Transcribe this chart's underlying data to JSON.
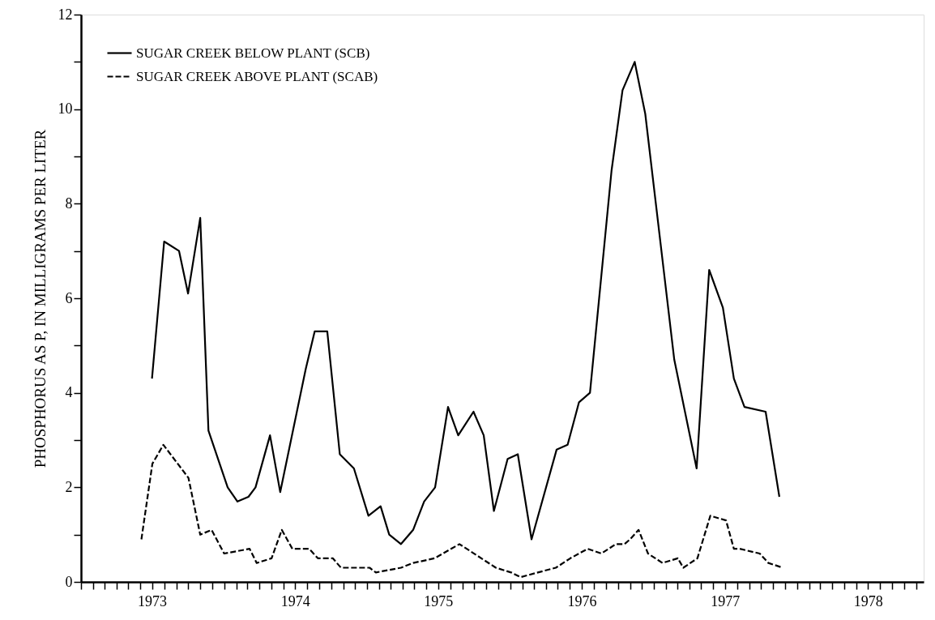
{
  "chart_data": {
    "type": "line",
    "ylabel": "PHOSPHORUS AS P, IN MILLIGRAMS PER LITER",
    "xlim": [
      "1973-01-01",
      "1978-11-20"
    ],
    "ylim": [
      0,
      12
    ],
    "yticks": [
      0,
      {
        "value": 1,
        "label": null
      },
      2,
      {
        "value": 3,
        "label": null
      },
      4,
      {
        "value": 5,
        "label": null
      },
      6,
      {
        "value": 7,
        "label": null
      },
      8,
      {
        "value": 9,
        "label": null
      },
      10,
      {
        "value": 11,
        "label": null
      },
      12
    ],
    "xticks": [
      {
        "value": "1973-01-01",
        "label": null
      },
      {
        "value": "1973-02-01",
        "label": null
      },
      {
        "value": "1973-03-01",
        "label": null
      },
      {
        "value": "1973-04-01",
        "label": null
      },
      {
        "value": "1973-05-01",
        "label": null
      },
      {
        "value": "1973-06-01",
        "label": null
      },
      {
        "value": "1973-07-01",
        "label": "1973"
      },
      {
        "value": "1973-08-01",
        "label": null
      },
      {
        "value": "1973-09-01",
        "label": null
      },
      {
        "value": "1973-10-01",
        "label": null
      },
      {
        "value": "1973-11-01",
        "label": null
      },
      {
        "value": "1973-12-01",
        "label": null
      },
      {
        "value": "1974-01-01",
        "label": null
      },
      {
        "value": "1974-02-01",
        "label": null
      },
      {
        "value": "1974-03-01",
        "label": null
      },
      {
        "value": "1974-04-01",
        "label": null
      },
      {
        "value": "1974-05-01",
        "label": null
      },
      {
        "value": "1974-06-01",
        "label": null
      },
      {
        "value": "1974-07-01",
        "label": "1974"
      },
      {
        "value": "1974-08-01",
        "label": null
      },
      {
        "value": "1974-09-01",
        "label": null
      },
      {
        "value": "1974-10-01",
        "label": null
      },
      {
        "value": "1974-11-01",
        "label": null
      },
      {
        "value": "1974-12-01",
        "label": null
      },
      {
        "value": "1975-01-01",
        "label": null
      },
      {
        "value": "1975-02-01",
        "label": null
      },
      {
        "value": "1975-03-01",
        "label": null
      },
      {
        "value": "1975-04-01",
        "label": null
      },
      {
        "value": "1975-05-01",
        "label": null
      },
      {
        "value": "1975-06-01",
        "label": null
      },
      {
        "value": "1975-07-01",
        "label": "1975"
      },
      {
        "value": "1975-08-01",
        "label": null
      },
      {
        "value": "1975-09-01",
        "label": null
      },
      {
        "value": "1975-10-01",
        "label": null
      },
      {
        "value": "1975-11-01",
        "label": null
      },
      {
        "value": "1975-12-01",
        "label": null
      },
      {
        "value": "1976-01-01",
        "label": null
      },
      {
        "value": "1976-02-01",
        "label": null
      },
      {
        "value": "1976-03-01",
        "label": null
      },
      {
        "value": "1976-04-01",
        "label": null
      },
      {
        "value": "1976-05-01",
        "label": null
      },
      {
        "value": "1976-06-01",
        "label": null
      },
      {
        "value": "1976-07-01",
        "label": "1976"
      },
      {
        "value": "1976-08-01",
        "label": null
      },
      {
        "value": "1976-09-01",
        "label": null
      },
      {
        "value": "1976-10-01",
        "label": null
      },
      {
        "value": "1976-11-01",
        "label": null
      },
      {
        "value": "1976-12-01",
        "label": null
      },
      {
        "value": "1977-01-01",
        "label": null
      },
      {
        "value": "1977-02-01",
        "label": null
      },
      {
        "value": "1977-03-01",
        "label": null
      },
      {
        "value": "1977-04-01",
        "label": null
      },
      {
        "value": "1977-05-01",
        "label": null
      },
      {
        "value": "1977-06-01",
        "label": null
      },
      {
        "value": "1977-07-01",
        "label": "1977"
      },
      {
        "value": "1977-08-01",
        "label": null
      },
      {
        "value": "1977-09-01",
        "label": null
      },
      {
        "value": "1977-10-01",
        "label": null
      },
      {
        "value": "1977-11-01",
        "label": null
      },
      {
        "value": "1977-12-01",
        "label": null
      },
      {
        "value": "1978-01-01",
        "label": null
      },
      {
        "value": "1978-02-01",
        "label": null
      },
      {
        "value": "1978-03-01",
        "label": null
      },
      {
        "value": "1978-04-01",
        "label": null
      },
      {
        "value": "1978-05-01",
        "label": null
      },
      {
        "value": "1978-06-01",
        "label": null
      },
      {
        "value": "1978-07-01",
        "label": "1978"
      },
      {
        "value": "1978-08-01",
        "label": null
      },
      {
        "value": "1978-09-01",
        "label": null
      },
      {
        "value": "1978-10-01",
        "label": null
      },
      {
        "value": "1978-11-01",
        "label": null
      }
    ],
    "grid": false,
    "legend": "top left",
    "marker": "none",
    "series": [
      {
        "name": "SUGAR CREEK BELOW PLANT (SCB)",
        "color": "#000000",
        "line_style": "solid",
        "x": [
          "1973-07-01",
          "1973-08-01",
          "1973-09-08",
          "1973-10-01",
          "1973-11-01",
          "1973-11-22",
          "1974-01-10",
          "1974-02-04",
          "1974-03-04",
          "1974-03-22",
          "1974-04-28",
          "1974-05-24",
          "1974-07-28",
          "1974-08-20",
          "1974-09-21",
          "1974-10-23",
          "1974-11-28",
          "1975-01-04",
          "1975-02-04",
          "1975-02-26",
          "1975-03-28",
          "1975-04-28",
          "1975-05-26",
          "1975-06-23",
          "1975-07-26",
          "1975-08-21",
          "1975-09-29",
          "1975-10-25",
          "1975-11-20",
          "1975-12-25",
          "1976-01-20",
          "1976-02-24",
          "1976-04-28",
          "1976-05-26",
          "1976-06-24",
          "1976-07-22",
          "1976-09-15",
          "1976-10-13",
          "1976-11-13",
          "1976-12-10",
          "1977-02-22",
          "1977-04-20",
          "1977-05-22",
          "1977-06-26",
          "1977-07-24",
          "1977-08-20",
          "1977-10-13",
          "1977-11-17"
        ],
        "values": [
          4.3,
          7.2,
          7.0,
          6.1,
          7.7,
          3.2,
          2.0,
          1.7,
          1.8,
          2.0,
          3.1,
          1.9,
          4.5,
          5.3,
          5.3,
          2.7,
          2.4,
          1.4,
          1.6,
          1.0,
          0.8,
          1.1,
          1.7,
          2.0,
          3.7,
          3.1,
          3.6,
          3.1,
          1.5,
          2.6,
          2.7,
          0.9,
          2.8,
          2.9,
          3.8,
          4.0,
          8.7,
          10.4,
          11.0,
          9.9,
          4.7,
          2.4,
          6.6,
          5.8,
          4.3,
          3.7,
          3.6,
          1.8
        ]
      },
      {
        "name": "SUGAR CREEK ABOVE PLANT (SCAB)",
        "color": "#000000",
        "line_style": "dashed",
        "x": [
          "1973-06-04",
          "1973-07-02",
          "1973-07-30",
          "1973-10-02",
          "1973-11-01",
          "1973-11-30",
          "1974-01-01",
          "1974-03-07",
          "1974-03-25",
          "1974-05-02",
          "1974-05-28",
          "1974-06-24",
          "1974-08-06",
          "1974-08-28",
          "1974-10-05",
          "1974-10-26",
          "1975-01-07",
          "1975-01-23",
          "1975-03-28",
          "1975-04-28",
          "1975-06-22",
          "1975-08-24",
          "1975-11-25",
          "1976-01-03",
          "1976-01-27",
          "1976-03-11",
          "1976-04-26",
          "1976-06-02",
          "1976-07-16",
          "1976-08-20",
          "1976-09-26",
          "1976-10-18",
          "1976-11-01",
          "1976-11-23",
          "1976-12-17",
          "1977-01-23",
          "1977-03-03",
          "1977-03-17",
          "1977-04-22",
          "1977-05-25",
          "1977-07-04",
          "1977-07-24",
          "1977-08-08",
          "1977-09-28",
          "1977-10-20",
          "1977-11-26"
        ],
        "values": [
          0.9,
          2.5,
          2.9,
          2.2,
          1.0,
          1.1,
          0.6,
          0.7,
          0.4,
          0.5,
          1.1,
          0.7,
          0.7,
          0.5,
          0.5,
          0.3,
          0.3,
          0.2,
          0.3,
          0.4,
          0.5,
          0.8,
          0.3,
          0.2,
          0.1,
          0.2,
          0.3,
          0.5,
          0.7,
          0.6,
          0.8,
          0.8,
          0.9,
          1.1,
          0.6,
          0.4,
          0.5,
          0.3,
          0.5,
          1.4,
          1.3,
          0.7,
          0.7,
          0.6,
          0.4,
          0.3
        ]
      }
    ]
  }
}
